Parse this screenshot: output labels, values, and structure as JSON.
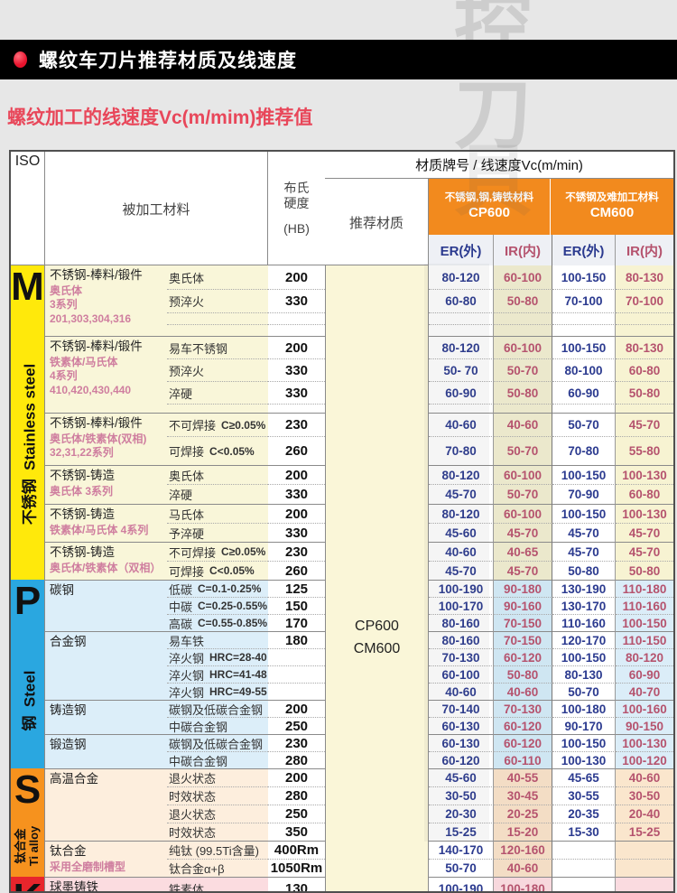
{
  "page": {
    "title": "螺纹车刀片推荐材质及线速度",
    "subtitle": "螺纹加工的线速度Vc(m/mim)推荐值",
    "watermark": [
      "控",
      "刀",
      "具"
    ]
  },
  "colors": {
    "accent_red": "#e8132d",
    "subtitle_red": "#e8475a",
    "header_orange": "#f28a1e",
    "er_text": "#2b3a8f",
    "ir_text": "#b5536e",
    "iso_m_yellow": "#ffe90b",
    "iso_p_blue": "#2aa7e0",
    "iso_s_orange": "#f6921e",
    "iso_k_red": "#e8252c"
  },
  "header": {
    "iso": "ISO",
    "workpiece_material": "被加工材料",
    "hardness_lines": [
      "布氏",
      "硬度",
      "(HB)"
    ],
    "grade_speed_title": "材质牌号 / 线速度Vc(m/min)",
    "recommended_grade": "推荐材质",
    "grade_value_lines": [
      "CP600",
      "CM600"
    ],
    "grade_groups": [
      {
        "material": "不锈钢,钢,铸铁材料",
        "grade": "CP600"
      },
      {
        "material": "不锈钢及难加工材料",
        "grade": "CM600"
      }
    ],
    "subcols": [
      "ER(外)",
      "IR(内)",
      "ER(外)",
      "IR(内)"
    ]
  },
  "sections": [
    {
      "letter": "M",
      "cn": "不锈钢",
      "en": "Stainless steel",
      "color": "#ffe90b",
      "tint": "#f9f6d9",
      "ir": [
        "#ebe8cc",
        "#f7f3d2"
      ],
      "blocks": [
        {
          "name": "不锈钢-棒料/锻件",
          "sub": [
            "奥氏体",
            "3系列",
            "201,303,304,316"
          ],
          "rows": [
            {
              "c": "奥氏体",
              "b": "200",
              "h": 26,
              "v": [
                "80-120",
                "60-100",
                "100-150",
                "80-130"
              ]
            },
            {
              "c": "预淬火",
              "b": "330",
              "h": 26,
              "v": [
                "60-80",
                "50-80",
                "70-100",
                "70-100"
              ]
            },
            {
              "c": "",
              "b": "",
              "h": 13,
              "v": [
                "",
                "",
                "",
                ""
              ]
            },
            {
              "c": "",
              "b": "",
              "h": 13,
              "v": [
                "",
                "",
                "",
                ""
              ]
            }
          ]
        },
        {
          "name": "不锈钢-棒料/锻件",
          "sub": [
            "铁素体/马氏体",
            "4系列",
            "410,420,430,440"
          ],
          "rows": [
            {
              "c": "易车不锈钢",
              "b": "200",
              "h": 25,
              "v": [
                "80-120",
                "60-100",
                "100-150",
                "80-130"
              ]
            },
            {
              "c": "预淬火",
              "b": "330",
              "h": 25,
              "v": [
                "50- 70",
                "50-70",
                "80-100",
                "60-80"
              ]
            },
            {
              "c": "淬硬",
              "b": "330",
              "h": 25,
              "v": [
                "60-90",
                "50-80",
                "60-90",
                "50-80"
              ]
            },
            {
              "c": "",
              "b": "",
              "h": 10,
              "v": [
                "",
                "",
                "",
                ""
              ]
            }
          ]
        },
        {
          "name": "不锈钢-棒料/锻件",
          "sub": [
            "奥氏体/铁素体(双相)",
            "32,31,22系列"
          ],
          "rows": [
            {
              "c": "不可焊接",
              "n": "C≥0.05%",
              "b": "230",
              "h": 26,
              "v": [
                "40-60",
                "40-60",
                "50-70",
                "45-70"
              ]
            },
            {
              "c": "可焊接",
              "n": "C<0.05%",
              "b": "260",
              "h": 32,
              "v": [
                "70-80",
                "50-70",
                "70-80",
                "55-80"
              ]
            }
          ]
        },
        {
          "name": "不锈钢-铸造",
          "sub": [
            "奥氏体 3系列"
          ],
          "rows": [
            {
              "c": "奥氏体",
              "b": "200",
              "h": 21,
              "v": [
                "80-120",
                "60-100",
                "100-150",
                "100-130"
              ]
            },
            {
              "c": "淬硬",
              "b": "330",
              "h": 22,
              "v": [
                "45-70",
                "50-70",
                "70-90",
                "60-80"
              ]
            }
          ]
        },
        {
          "name": "不锈钢-铸造",
          "sub": [
            "铁素体/马氏体 4系列"
          ],
          "rows": [
            {
              "c": "马氏体",
              "b": "200",
              "h": 21,
              "v": [
                "80-120",
                "60-100",
                "100-150",
                "100-130"
              ]
            },
            {
              "c": "予淬硬",
              "b": "330",
              "h": 21,
              "v": [
                "45-60",
                "45-70",
                "45-70",
                "45-70"
              ]
            }
          ]
        },
        {
          "name": "不锈钢-铸造",
          "sub": [
            "奥氏体/铁素体（双相）"
          ],
          "rows": [
            {
              "c": "不可焊接",
              "n": "C≥0.05%",
              "b": "230",
              "h": 21,
              "v": [
                "40-60",
                "40-65",
                "45-70",
                "45-70"
              ]
            },
            {
              "c": "可焊接",
              "n": "C<0.05%",
              "b": "260",
              "h": 21,
              "v": [
                "45-70",
                "45-70",
                "50-80",
                "50-80"
              ]
            }
          ]
        }
      ]
    },
    {
      "letter": "P",
      "cn": "钢",
      "en": "Steel",
      "color": "#2aa7e0",
      "tint": "#dceef9",
      "ir": [
        "#cfe6f2",
        "#dbedf8"
      ],
      "blocks": [
        {
          "name": "碳钢",
          "sub": [],
          "rows": [
            {
              "c": "低碳",
              "n": "C=0.1-0.25%",
              "b": "125",
              "h": 19,
              "v": [
                "100-190",
                "90-180",
                "130-190",
                "110-180"
              ]
            },
            {
              "c": "中碳",
              "n": "C=0.25-0.55%",
              "b": "150",
              "h": 19,
              "v": [
                "100-170",
                "90-160",
                "130-170",
                "110-160"
              ]
            },
            {
              "c": "高碳",
              "n": "C=0.55-0.85%",
              "b": "170",
              "h": 19,
              "v": [
                "80-160",
                "70-150",
                "110-160",
                "100-150"
              ]
            }
          ]
        },
        {
          "name": "合金钢",
          "sub": [],
          "rows": [
            {
              "c": "易车铁",
              "b": "180",
              "h": 19,
              "v": [
                "80-160",
                "70-150",
                "120-170",
                "110-150"
              ]
            },
            {
              "c": "淬火钢",
              "n": "HRC=28-40",
              "b": "",
              "h": 19,
              "v": [
                "70-130",
                "60-120",
                "100-150",
                "80-120"
              ]
            },
            {
              "c": "淬火钢",
              "n": "HRC=41-48",
              "b": "",
              "h": 19,
              "v": [
                "60-100",
                "50-80",
                "80-130",
                "60-90"
              ]
            },
            {
              "c": "淬火钢",
              "n": "HRC=49-55",
              "b": "",
              "h": 19,
              "v": [
                "40-60",
                "40-60",
                "50-70",
                "40-70"
              ]
            }
          ]
        },
        {
          "name": "铸造钢",
          "sub": [],
          "rows": [
            {
              "c": "碳钢及低碳合金钢",
              "b": "200",
              "h": 19,
              "v": [
                "70-140",
                "70-130",
                "100-180",
                "100-160"
              ]
            },
            {
              "c": "中碳合金钢",
              "b": "250",
              "h": 19,
              "v": [
                "60-130",
                "60-120",
                "90-170",
                "90-150"
              ]
            }
          ]
        },
        {
          "name": "锻造钢",
          "sub": [],
          "rows": [
            {
              "c": "碳钢及低碳合金钢",
              "b": "230",
              "h": 19,
              "v": [
                "60-130",
                "60-120",
                "100-150",
                "100-130"
              ]
            },
            {
              "c": "中碳合金钢",
              "b": "280",
              "h": 19,
              "v": [
                "60-120",
                "60-110",
                "100-130",
                "100-120"
              ]
            }
          ]
        }
      ]
    },
    {
      "letter": "S",
      "cn": "钛合金",
      "en": "Ti alloy",
      "color": "#f6921e",
      "tint": "#fdeedd",
      "ir": [
        "#f3ddc5",
        "#fae6cd"
      ],
      "blocks": [
        {
          "name": "高温合金",
          "sub": [],
          "rows": [
            {
              "c": "退火状态",
              "b": "200",
              "h": 20,
              "v": [
                "45-60",
                "40-55",
                "45-65",
                "40-60"
              ]
            },
            {
              "c": "时效状态",
              "b": "280",
              "h": 20,
              "v": [
                "30-50",
                "30-45",
                "30-55",
                "30-50"
              ]
            },
            {
              "c": "退火状态",
              "b": "250",
              "h": 20,
              "v": [
                "20-30",
                "20-25",
                "20-35",
                "20-40"
              ]
            },
            {
              "c": "时效状态",
              "b": "350",
              "h": 20,
              "v": [
                "15-25",
                "15-20",
                "15-30",
                "15-25"
              ]
            }
          ]
        },
        {
          "name": "钛合金",
          "sub": [
            "采用全磨制槽型"
          ],
          "rows": [
            {
              "c": "纯钛 (99.5Ti含量)",
              "b": "400Rm",
              "h": 20,
              "v": [
                "140-170",
                "120-160",
                "",
                ""
              ]
            },
            {
              "c": "钛合金α+β",
              "b": "1050Rm",
              "h": 20,
              "v": [
                "50-70",
                "40-60",
                "",
                ""
              ]
            }
          ]
        }
      ]
    },
    {
      "letter": "K",
      "cn": "",
      "en": "",
      "color": "#e8252c",
      "tint": "#fbdce0",
      "ir": [
        "#f7d8dd",
        "#fadbe0"
      ],
      "blocks": [
        {
          "name": "球墨铸铁",
          "sub": [],
          "rows": [
            {
              "c": "铁素体",
              "b": "130",
              "h": 26,
              "v": [
                "100-190",
                "100-180",
                "",
                ""
              ]
            }
          ]
        }
      ]
    }
  ]
}
